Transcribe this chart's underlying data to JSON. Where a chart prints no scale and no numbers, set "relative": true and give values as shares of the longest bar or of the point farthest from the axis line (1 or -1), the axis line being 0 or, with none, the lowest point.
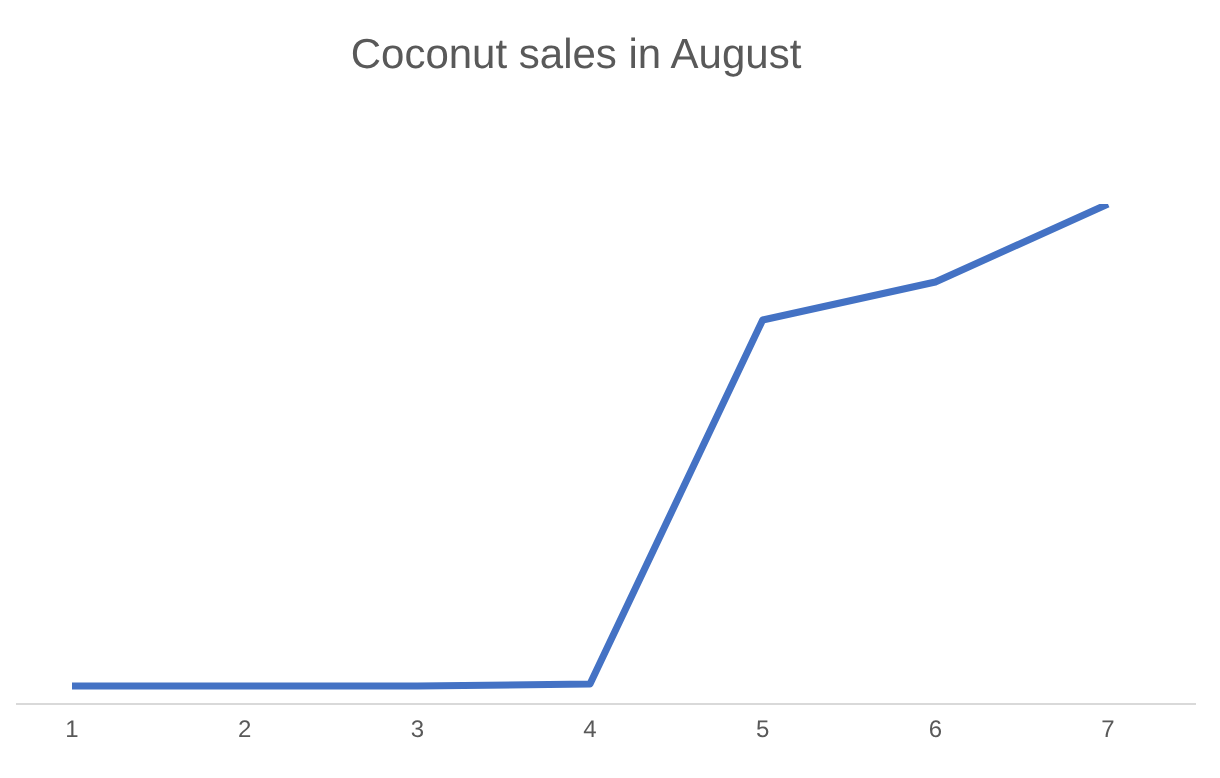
{
  "chart_data": {
    "type": "line",
    "title": "Coconut sales in August",
    "relative": true,
    "categories": [
      "1",
      "2",
      "3",
      "4",
      "5",
      "6",
      "7"
    ],
    "series": [
      {
        "color": "#4472c4",
        "values": [
          0.036,
          0.036,
          0.036,
          0.04,
          0.768,
          0.844,
          1
        ]
      }
    ],
    "marker": "none",
    "line_style": "solid"
  }
}
